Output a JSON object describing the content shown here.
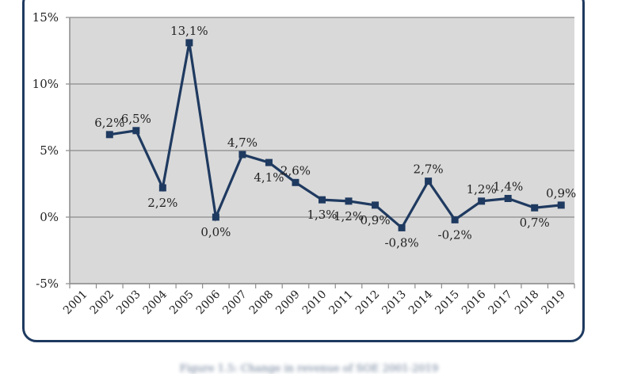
{
  "chart_data": {
    "type": "line",
    "title": "",
    "xlabel": "",
    "ylabel": "",
    "categories": [
      "2001",
      "2002",
      "2003",
      "2004",
      "2005",
      "2006",
      "2007",
      "2008",
      "2009",
      "2010",
      "2011",
      "2012",
      "2013",
      "2014",
      "2015",
      "2016",
      "2017",
      "2018",
      "2019"
    ],
    "series": [
      {
        "values": [
          null,
          6.2,
          6.5,
          2.2,
          13.1,
          0.0,
          4.7,
          4.1,
          2.6,
          1.3,
          1.2,
          0.9,
          -0.8,
          2.7,
          -0.2,
          1.2,
          1.4,
          0.7,
          0.9
        ],
        "labels": [
          "",
          "6,2%",
          "6,5%",
          "2,2%",
          "13,1%",
          "0,0%",
          "4,7%",
          "4,1%",
          "2,6%",
          "1,3%",
          "1,2%",
          "0,9%",
          "-0,8%",
          "2,7%",
          "-0,2%",
          "1,2%",
          "1,4%",
          "0,7%",
          "0,9%"
        ]
      }
    ],
    "ylim": [
      -5,
      15
    ],
    "yticks": [
      -5,
      0,
      5,
      10,
      15
    ],
    "ytick_labels": [
      "-5%",
      "0%",
      "5%",
      "10%",
      "15%"
    ],
    "grid": true,
    "legend": "none",
    "colors": {
      "line": "#1f3a60",
      "plot_background": "#d9d9d9",
      "gridline": "#8c8c8c",
      "frame": "#1f3a60"
    }
  },
  "caption": "Figure 1.5: Change in revenue of SOE 2001-2019"
}
